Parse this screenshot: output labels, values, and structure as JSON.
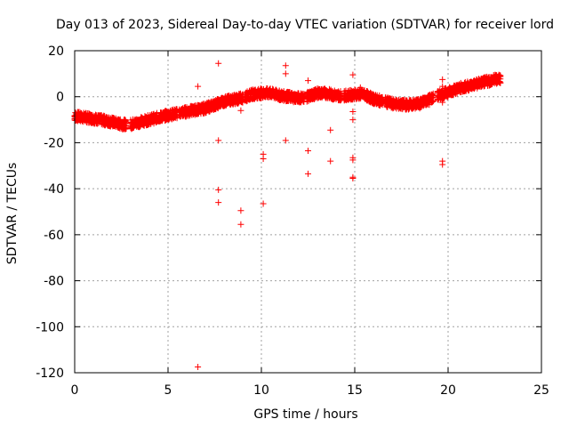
{
  "chart_data": {
    "type": "scatter",
    "title": "Day 013 of 2023, Sidereal Day-to-day VTEC variation (SDTVAR) for receiver lord",
    "xlabel": "GPS time / hours",
    "ylabel": "SDTVAR / TECUs",
    "xlim": [
      0,
      25
    ],
    "ylim": [
      -120,
      20
    ],
    "xticks": [
      0,
      5,
      10,
      15,
      20,
      25
    ],
    "yticks": [
      -120,
      -100,
      -80,
      -60,
      -40,
      -20,
      0,
      20
    ],
    "grid": true,
    "legend": "none",
    "marker": "+",
    "color": "#ff0000",
    "trend": [
      [
        0.0,
        -8.5
      ],
      [
        1.0,
        -9.5
      ],
      [
        2.0,
        -11.0
      ],
      [
        2.5,
        -12.0
      ],
      [
        3.0,
        -12.0
      ],
      [
        3.5,
        -11.0
      ],
      [
        4.0,
        -10.0
      ],
      [
        5.0,
        -8.0
      ],
      [
        6.0,
        -6.5
      ],
      [
        7.0,
        -5.0
      ],
      [
        7.5,
        -3.5
      ],
      [
        8.0,
        -2.0
      ],
      [
        9.0,
        -0.5
      ],
      [
        9.5,
        1.0
      ],
      [
        10.0,
        1.5
      ],
      [
        10.5,
        1.5
      ],
      [
        11.0,
        0.5
      ],
      [
        11.5,
        0.0
      ],
      [
        12.0,
        -0.5
      ],
      [
        12.5,
        0.0
      ],
      [
        13.0,
        1.5
      ],
      [
        13.5,
        1.5
      ],
      [
        14.0,
        0.5
      ],
      [
        14.5,
        0.5
      ],
      [
        15.0,
        1.0
      ],
      [
        15.5,
        1.0
      ],
      [
        16.0,
        -1.0
      ],
      [
        16.5,
        -2.0
      ],
      [
        17.0,
        -3.0
      ],
      [
        17.5,
        -3.5
      ],
      [
        18.0,
        -3.5
      ],
      [
        18.5,
        -3.0
      ],
      [
        19.0,
        -1.0
      ],
      [
        19.5,
        0.5
      ],
      [
        20.0,
        2.0
      ],
      [
        20.5,
        3.5
      ],
      [
        21.0,
        4.5
      ],
      [
        21.5,
        5.5
      ],
      [
        22.0,
        6.5
      ],
      [
        22.5,
        7.5
      ],
      [
        22.8,
        8.0
      ]
    ],
    "gaps": [
      [
        2.8,
        3.0
      ],
      [
        5.5,
        5.6
      ],
      [
        9.0,
        9.1
      ],
      [
        12.3,
        12.4
      ],
      [
        14.3,
        14.4
      ],
      [
        16.5,
        16.6
      ],
      [
        19.2,
        19.4
      ]
    ],
    "outliers": [
      [
        6.6,
        4.5
      ],
      [
        6.6,
        -117.5
      ],
      [
        7.7,
        14.5
      ],
      [
        7.7,
        -19.0
      ],
      [
        7.7,
        -40.5
      ],
      [
        7.7,
        -46.0
      ],
      [
        8.9,
        -2.0
      ],
      [
        8.9,
        -6.0
      ],
      [
        8.9,
        -49.5
      ],
      [
        8.9,
        -55.5
      ],
      [
        10.1,
        -25.0
      ],
      [
        10.1,
        -27.0
      ],
      [
        10.1,
        -46.5
      ],
      [
        11.3,
        13.5
      ],
      [
        11.3,
        10.0
      ],
      [
        11.3,
        -19.0
      ],
      [
        12.5,
        7.0
      ],
      [
        12.5,
        -23.5
      ],
      [
        12.5,
        -33.5
      ],
      [
        13.7,
        -14.5
      ],
      [
        13.7,
        -28.0
      ],
      [
        14.9,
        9.5
      ],
      [
        14.9,
        -6.5
      ],
      [
        14.9,
        -10.0
      ],
      [
        14.9,
        -26.5
      ],
      [
        14.9,
        -27.5
      ],
      [
        14.9,
        -35.0
      ],
      [
        14.9,
        -35.5
      ],
      [
        15.3,
        4.0
      ],
      [
        15.3,
        2.0
      ],
      [
        19.0,
        -2.0
      ],
      [
        19.0,
        -3.5
      ],
      [
        19.7,
        7.5
      ],
      [
        19.7,
        4.5
      ],
      [
        19.7,
        -2.5
      ],
      [
        19.7,
        -28.0
      ],
      [
        19.7,
        -29.5
      ]
    ]
  }
}
